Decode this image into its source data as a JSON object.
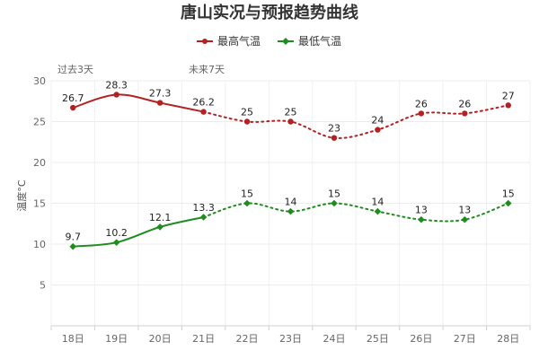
{
  "chart_data": {
    "type": "line",
    "title": "唐山实况与预报趋势曲线",
    "categories": [
      "18日",
      "19日",
      "20日",
      "21日",
      "22日",
      "23日",
      "24日",
      "25日",
      "26日",
      "27日",
      "28日"
    ],
    "ylabel": "温度°C",
    "xlabel": "",
    "ylim": [
      0,
      30
    ],
    "yticks": [
      5,
      10,
      15,
      20,
      25,
      30
    ],
    "grid": true,
    "legend_position": "top-center",
    "period_labels": [
      "过去3天",
      "未来7天"
    ],
    "observed_until_index": 3,
    "series": [
      {
        "name": "最高气温",
        "color": "#b22222",
        "marker": "circle",
        "values": [
          26.7,
          28.3,
          27.3,
          26.2,
          25,
          25,
          23,
          24,
          26,
          26,
          27
        ],
        "labels": [
          "26.7",
          "28.3",
          "27.3",
          "26.2",
          "25",
          "25",
          "23",
          "24",
          "26",
          "26",
          "27"
        ]
      },
      {
        "name": "最低气温",
        "color": "#1e8c1e",
        "marker": "diamond",
        "values": [
          9.7,
          10.2,
          12.1,
          13.3,
          15,
          14,
          15,
          14,
          13,
          13,
          15
        ],
        "labels": [
          "9.7",
          "10.2",
          "12.1",
          "13.3",
          "15",
          "14",
          "15",
          "14",
          "13",
          "13",
          "15"
        ]
      }
    ]
  }
}
